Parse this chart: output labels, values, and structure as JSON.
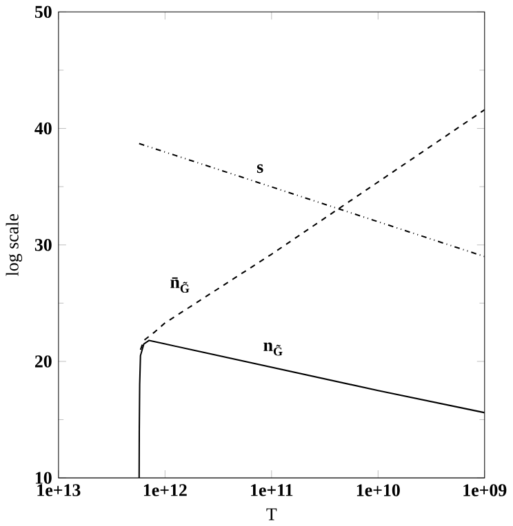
{
  "chart_data": {
    "type": "line",
    "xlabel": "T",
    "ylabel": "log scale",
    "log": "x",
    "xlim": [
      10000000000000.0,
      1000000000.0
    ],
    "ylim": [
      10,
      50
    ],
    "xticks": [
      {
        "value": 10000000000000.0,
        "label": "1e+13"
      },
      {
        "value": 1000000000000.0,
        "label": "1e+12"
      },
      {
        "value": 100000000000.0,
        "label": "1e+11"
      },
      {
        "value": 10000000000.0,
        "label": "1e+10"
      },
      {
        "value": 1000000000.0,
        "label": "1e+09"
      }
    ],
    "yticks": [
      10,
      20,
      30,
      40,
      50
    ],
    "grid": false,
    "marker": "none",
    "series": [
      {
        "name": "n$_{G̃}$",
        "color": "#000000",
        "line_style": "solid",
        "x": [
          1750000000000.0,
          1745000000000.0,
          1730000000000.0,
          1700000000000.0,
          1580000000000.0,
          1410000000000.0,
          1000000000000.0,
          100000000000.0,
          10000000000.0,
          1000000000.0
        ],
        "values": [
          10,
          14,
          18,
          20.5,
          21.5,
          21.8,
          21.5,
          19.5,
          17.5,
          15.6
        ]
      },
      {
        "name": "n̄$_{G̃}$",
        "color": "#000000",
        "line_style": "dashed",
        "x": [
          1700000000000.0,
          1580000000000.0,
          1260000000000.0,
          1000000000000.0,
          100000000000.0,
          10000000000.0,
          1000000000.0
        ],
        "values": [
          21,
          21.8,
          22.5,
          23.3,
          29.2,
          35.4,
          41.6
        ]
      },
      {
        "name": "s",
        "color": "#000000",
        "line_style": "dashdotted",
        "x": [
          1750000000000.0,
          1000000000.0
        ],
        "values": [
          38.7,
          29
        ]
      }
    ]
  }
}
